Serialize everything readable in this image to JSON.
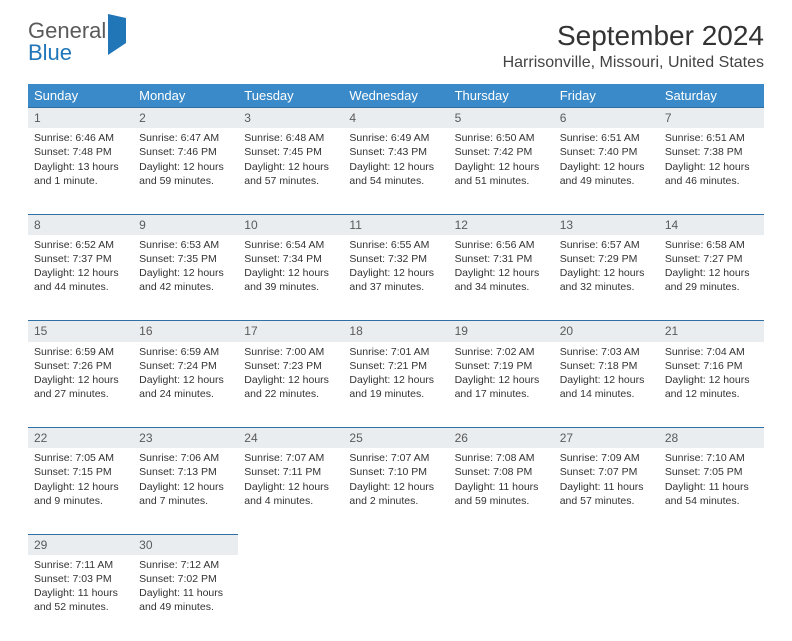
{
  "brand": {
    "name_part1": "General",
    "name_part2": "Blue"
  },
  "title": "September 2024",
  "location": "Harrisonville, Missouri, United States",
  "colors": {
    "header_bg": "#3a8ac9",
    "header_text": "#ffffff",
    "daynum_bg": "#e9edf0",
    "row_border": "#2f6fa3",
    "brand_blue": "#2176b8"
  },
  "weekdays": [
    "Sunday",
    "Monday",
    "Tuesday",
    "Wednesday",
    "Thursday",
    "Friday",
    "Saturday"
  ],
  "days": [
    {
      "n": 1,
      "sunrise": "6:46 AM",
      "sunset": "7:48 PM",
      "daylight": "13 hours and 1 minute."
    },
    {
      "n": 2,
      "sunrise": "6:47 AM",
      "sunset": "7:46 PM",
      "daylight": "12 hours and 59 minutes."
    },
    {
      "n": 3,
      "sunrise": "6:48 AM",
      "sunset": "7:45 PM",
      "daylight": "12 hours and 57 minutes."
    },
    {
      "n": 4,
      "sunrise": "6:49 AM",
      "sunset": "7:43 PM",
      "daylight": "12 hours and 54 minutes."
    },
    {
      "n": 5,
      "sunrise": "6:50 AM",
      "sunset": "7:42 PM",
      "daylight": "12 hours and 51 minutes."
    },
    {
      "n": 6,
      "sunrise": "6:51 AM",
      "sunset": "7:40 PM",
      "daylight": "12 hours and 49 minutes."
    },
    {
      "n": 7,
      "sunrise": "6:51 AM",
      "sunset": "7:38 PM",
      "daylight": "12 hours and 46 minutes."
    },
    {
      "n": 8,
      "sunrise": "6:52 AM",
      "sunset": "7:37 PM",
      "daylight": "12 hours and 44 minutes."
    },
    {
      "n": 9,
      "sunrise": "6:53 AM",
      "sunset": "7:35 PM",
      "daylight": "12 hours and 42 minutes."
    },
    {
      "n": 10,
      "sunrise": "6:54 AM",
      "sunset": "7:34 PM",
      "daylight": "12 hours and 39 minutes."
    },
    {
      "n": 11,
      "sunrise": "6:55 AM",
      "sunset": "7:32 PM",
      "daylight": "12 hours and 37 minutes."
    },
    {
      "n": 12,
      "sunrise": "6:56 AM",
      "sunset": "7:31 PM",
      "daylight": "12 hours and 34 minutes."
    },
    {
      "n": 13,
      "sunrise": "6:57 AM",
      "sunset": "7:29 PM",
      "daylight": "12 hours and 32 minutes."
    },
    {
      "n": 14,
      "sunrise": "6:58 AM",
      "sunset": "7:27 PM",
      "daylight": "12 hours and 29 minutes."
    },
    {
      "n": 15,
      "sunrise": "6:59 AM",
      "sunset": "7:26 PM",
      "daylight": "12 hours and 27 minutes."
    },
    {
      "n": 16,
      "sunrise": "6:59 AM",
      "sunset": "7:24 PM",
      "daylight": "12 hours and 24 minutes."
    },
    {
      "n": 17,
      "sunrise": "7:00 AM",
      "sunset": "7:23 PM",
      "daylight": "12 hours and 22 minutes."
    },
    {
      "n": 18,
      "sunrise": "7:01 AM",
      "sunset": "7:21 PM",
      "daylight": "12 hours and 19 minutes."
    },
    {
      "n": 19,
      "sunrise": "7:02 AM",
      "sunset": "7:19 PM",
      "daylight": "12 hours and 17 minutes."
    },
    {
      "n": 20,
      "sunrise": "7:03 AM",
      "sunset": "7:18 PM",
      "daylight": "12 hours and 14 minutes."
    },
    {
      "n": 21,
      "sunrise": "7:04 AM",
      "sunset": "7:16 PM",
      "daylight": "12 hours and 12 minutes."
    },
    {
      "n": 22,
      "sunrise": "7:05 AM",
      "sunset": "7:15 PM",
      "daylight": "12 hours and 9 minutes."
    },
    {
      "n": 23,
      "sunrise": "7:06 AM",
      "sunset": "7:13 PM",
      "daylight": "12 hours and 7 minutes."
    },
    {
      "n": 24,
      "sunrise": "7:07 AM",
      "sunset": "7:11 PM",
      "daylight": "12 hours and 4 minutes."
    },
    {
      "n": 25,
      "sunrise": "7:07 AM",
      "sunset": "7:10 PM",
      "daylight": "12 hours and 2 minutes."
    },
    {
      "n": 26,
      "sunrise": "7:08 AM",
      "sunset": "7:08 PM",
      "daylight": "11 hours and 59 minutes."
    },
    {
      "n": 27,
      "sunrise": "7:09 AM",
      "sunset": "7:07 PM",
      "daylight": "11 hours and 57 minutes."
    },
    {
      "n": 28,
      "sunrise": "7:10 AM",
      "sunset": "7:05 PM",
      "daylight": "11 hours and 54 minutes."
    },
    {
      "n": 29,
      "sunrise": "7:11 AM",
      "sunset": "7:03 PM",
      "daylight": "11 hours and 52 minutes."
    },
    {
      "n": 30,
      "sunrise": "7:12 AM",
      "sunset": "7:02 PM",
      "daylight": "11 hours and 49 minutes."
    }
  ],
  "labels": {
    "sunrise": "Sunrise:",
    "sunset": "Sunset:",
    "daylight": "Daylight:"
  },
  "start_weekday": 0,
  "total_cells": 35
}
